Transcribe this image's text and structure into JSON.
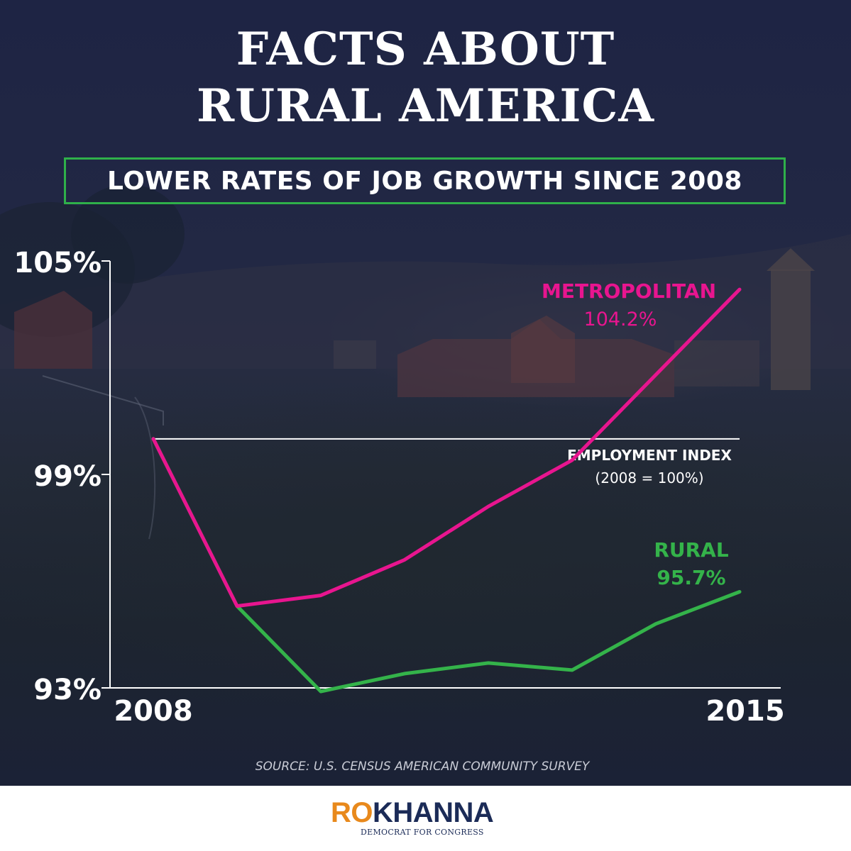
{
  "headline": {
    "line1": "FACTS ABOUT",
    "line2": "RURAL AMERICA"
  },
  "subtitle": "LOWER RATES OF JOB GROWTH SINCE 2008",
  "chart_data": {
    "type": "line",
    "title": "LOWER RATES OF JOB GROWTH SINCE 2008",
    "xlabel": "",
    "ylabel": "",
    "x": [
      2008,
      2009,
      2010,
      2011,
      2012,
      2013,
      2014,
      2015
    ],
    "x_tick_labels": [
      "2008",
      "2015"
    ],
    "y_tick_labels": [
      "105%",
      "99%",
      "93%"
    ],
    "y_ticks": [
      105,
      99,
      93
    ],
    "ylim": [
      93,
      105
    ],
    "grid": false,
    "reference_line": {
      "value": 100,
      "label": "EMPLOYMENT INDEX",
      "sublabel": "(2008 = 100%)",
      "color": "#ffffff"
    },
    "series": [
      {
        "name": "METROPOLITAN",
        "label": "METROPOLITAN",
        "end_label": "104.2%",
        "color": "#e8158f",
        "values": [
          100,
          95.3,
          95.6,
          96.6,
          98.1,
          99.4,
          101.8,
          104.2
        ]
      },
      {
        "name": "RURAL",
        "label": "RURAL",
        "end_label": "95.7%",
        "color": "#34b34a",
        "values": [
          100,
          95.3,
          92.9,
          93.4,
          93.7,
          93.5,
          94.8,
          95.7
        ]
      }
    ]
  },
  "source": "SOURCE: U.S. CENSUS AMERICAN COMMUNITY SURVEY",
  "logo": {
    "first": "RO",
    "last": "KHANNA",
    "tagline": "DEMOCRAT FOR CONGRESS",
    "first_color": "#e8891c",
    "last_color": "#1b2b57"
  }
}
